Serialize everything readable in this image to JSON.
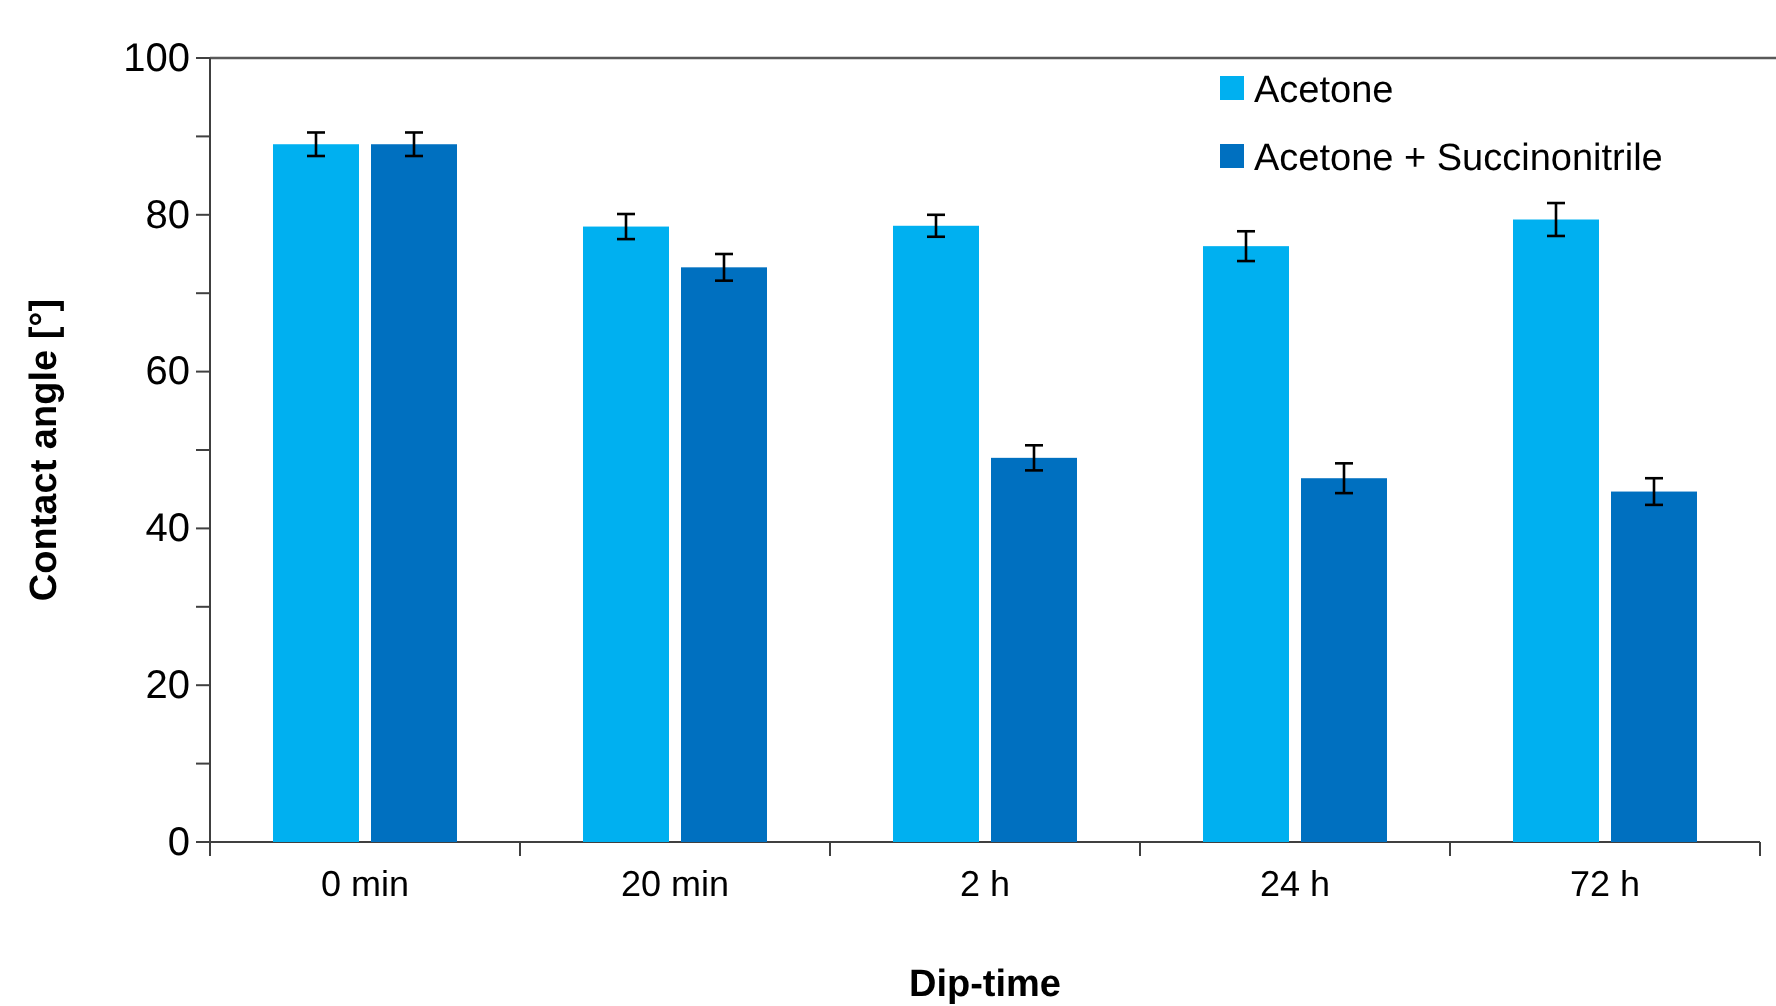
{
  "chart_data": {
    "type": "bar",
    "xlabel": "Dip-time",
    "ylabel": "Contact angle [°]",
    "categories": [
      "0 min",
      "20 min",
      "2 h",
      "24 h",
      "72 h"
    ],
    "series": [
      {
        "name": "Acetone",
        "color": "#00b0f0",
        "values": [
          89.0,
          78.5,
          78.6,
          76.0,
          79.4
        ],
        "errors": [
          1.5,
          1.6,
          1.4,
          1.9,
          2.1
        ]
      },
      {
        "name": "Acetone + Succinonitrile",
        "color": "#0070c0",
        "values": [
          89.0,
          73.3,
          49.0,
          46.4,
          44.7
        ],
        "errors": [
          1.5,
          1.7,
          1.6,
          1.9,
          1.7
        ]
      }
    ],
    "ylim": [
      0,
      100
    ],
    "yticks": [
      0,
      {
        "value": 10,
        "label": null
      },
      20,
      {
        "value": 30,
        "label": null
      },
      40,
      {
        "value": 50,
        "label": null
      },
      60,
      {
        "value": 70,
        "label": null
      },
      80,
      {
        "value": 90,
        "label": null
      },
      100
    ],
    "grid": false,
    "legend": "top right"
  }
}
